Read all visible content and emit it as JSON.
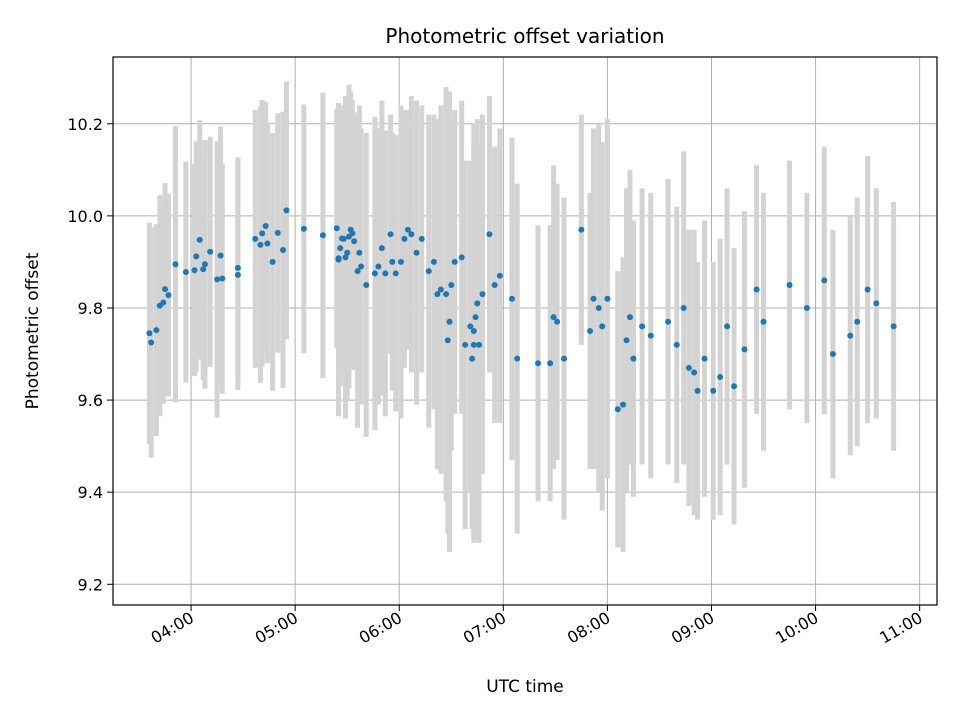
{
  "chart_data": {
    "type": "scatter",
    "title": "Photometric offset variation",
    "xlabel": "UTC time",
    "ylabel": "Photometric offset",
    "grid": true,
    "legend": "none",
    "xlim": [
      "03:15",
      "11:10"
    ],
    "ylim": [
      9.155,
      10.345
    ],
    "x_ticks": [
      "04:00",
      "05:00",
      "06:00",
      "07:00",
      "08:00",
      "09:00",
      "10:00",
      "11:00"
    ],
    "y_ticks": [
      "9.2",
      "9.4",
      "9.6",
      "9.8",
      "10.0",
      "10.2"
    ],
    "y_tick_values": [
      9.2,
      9.4,
      9.6,
      9.8,
      10.0,
      10.2
    ],
    "colors": {
      "points": "#1f77b4",
      "errorbars": "#d3d3d3",
      "grid": "#b0b0b0"
    },
    "series": [
      {
        "x": [
          "03:36",
          "03:37",
          "03:40",
          "03:42",
          "03:44",
          "03:45",
          "03:47",
          "03:51",
          "03:57",
          "04:02",
          "04:03",
          "04:05",
          "04:07",
          "04:08",
          "04:11",
          "04:15",
          "04:17",
          "04:18",
          "04:27",
          "04:27",
          "04:37",
          "04:40",
          "04:41",
          "04:43",
          "04:44",
          "04:47",
          "04:50",
          "04:53",
          "04:55",
          "05:05",
          "05:16",
          "05:24",
          "05:25",
          "05:25",
          "05:26",
          "05:27",
          "05:28",
          "05:29",
          "05:30",
          "05:31",
          "05:32",
          "05:33",
          "05:34",
          "05:36",
          "05:37",
          "05:38",
          "05:41",
          "05:46",
          "05:48",
          "05:50",
          "05:52",
          "05:55",
          "05:56",
          "05:58",
          "06:01",
          "06:03",
          "06:05",
          "06:07",
          "06:10",
          "06:13",
          "06:17",
          "06:20",
          "06:22",
          "06:24",
          "06:27",
          "06:28",
          "06:29",
          "06:30",
          "06:32",
          "06:36",
          "06:38",
          "06:41",
          "06:42",
          "06:43",
          "06:43",
          "06:44",
          "06:45",
          "06:46",
          "06:48",
          "06:52",
          "06:55",
          "06:58",
          "07:05",
          "07:08",
          "07:20",
          "07:27",
          "07:29",
          "07:31",
          "07:35",
          "07:45",
          "07:50",
          "07:52",
          "07:55",
          "07:57",
          "08:00",
          "08:06",
          "08:09",
          "08:11",
          "08:13",
          "08:15",
          "08:20",
          "08:25",
          "08:35",
          "08:40",
          "08:44",
          "08:47",
          "08:50",
          "08:52",
          "08:56",
          "09:01",
          "09:05",
          "09:09",
          "09:13",
          "09:19",
          "09:26",
          "09:30",
          "09:45",
          "09:55",
          "10:05",
          "10:10",
          "10:20",
          "10:24",
          "10:30",
          "10:35",
          "10:45"
        ],
        "y": [
          9.745,
          9.725,
          9.752,
          9.805,
          9.812,
          9.841,
          9.828,
          9.895,
          9.878,
          9.882,
          9.912,
          9.948,
          9.884,
          9.895,
          9.922,
          9.862,
          9.914,
          9.864,
          9.887,
          9.872,
          9.95,
          9.937,
          9.962,
          9.978,
          9.94,
          9.9,
          9.963,
          9.926,
          10.012,
          9.972,
          9.958,
          9.973,
          9.905,
          9.908,
          9.93,
          9.951,
          9.95,
          9.91,
          9.92,
          9.955,
          9.97,
          9.962,
          9.945,
          9.88,
          9.92,
          9.89,
          9.85,
          9.875,
          9.89,
          9.93,
          9.875,
          9.96,
          9.9,
          9.875,
          9.9,
          9.95,
          9.97,
          9.96,
          9.92,
          9.95,
          9.88,
          9.9,
          9.83,
          9.84,
          9.83,
          9.73,
          9.77,
          9.85,
          9.9,
          9.91,
          9.72,
          9.76,
          9.69,
          9.75,
          9.72,
          9.78,
          9.81,
          9.72,
          9.83,
          9.96,
          9.85,
          9.87,
          9.82,
          9.69,
          9.68,
          9.68,
          9.78,
          9.77,
          9.69,
          9.97,
          9.75,
          9.82,
          9.8,
          9.76,
          9.82,
          9.58,
          9.59,
          9.73,
          9.78,
          9.69,
          9.76,
          9.74,
          9.77,
          9.72,
          9.8,
          9.67,
          9.66,
          9.62,
          9.69,
          9.62,
          9.65,
          9.76,
          9.63,
          9.71,
          9.84,
          9.77,
          9.85,
          9.8,
          9.86,
          9.7,
          9.74,
          9.77,
          9.84,
          9.81,
          9.76
        ],
        "yerr": [
          0.24,
          0.25,
          0.23,
          0.24,
          0.22,
          0.23,
          0.22,
          0.3,
          0.24,
          0.23,
          0.25,
          0.26,
          0.24,
          0.27,
          0.25,
          0.3,
          0.28,
          0.25,
          0.24,
          0.25,
          0.28,
          0.3,
          0.29,
          0.27,
          0.26,
          0.28,
          0.26,
          0.3,
          0.28,
          0.27,
          0.31,
          0.26,
          0.34,
          0.33,
          0.3,
          0.28,
          0.29,
          0.35,
          0.32,
          0.33,
          0.3,
          0.29,
          0.28,
          0.34,
          0.32,
          0.3,
          0.33,
          0.34,
          0.3,
          0.32,
          0.31,
          0.26,
          0.28,
          0.3,
          0.34,
          0.28,
          0.26,
          0.3,
          0.33,
          0.29,
          0.34,
          0.32,
          0.38,
          0.4,
          0.45,
          0.42,
          0.5,
          0.36,
          0.33,
          0.34,
          0.4,
          0.36,
          0.37,
          0.45,
          0.43,
          0.41,
          0.4,
          0.43,
          0.39,
          0.3,
          0.3,
          0.32,
          0.35,
          0.38,
          0.3,
          0.3,
          0.33,
          0.3,
          0.35,
          0.25,
          0.3,
          0.37,
          0.4,
          0.4,
          0.39,
          0.3,
          0.32,
          0.33,
          0.32,
          0.3,
          0.3,
          0.31,
          0.31,
          0.3,
          0.34,
          0.3,
          0.31,
          0.28,
          0.3,
          0.28,
          0.3,
          0.3,
          0.3,
          0.3,
          0.27,
          0.28,
          0.27,
          0.25,
          0.29,
          0.27,
          0.26,
          0.27,
          0.29,
          0.25,
          0.27
        ]
      }
    ]
  }
}
